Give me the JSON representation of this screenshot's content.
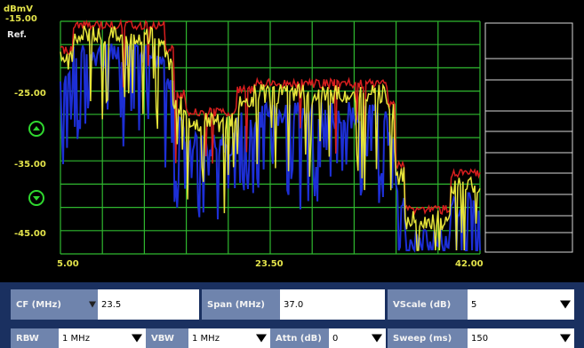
{
  "plot": {
    "unit_label": "dBmV",
    "ref_value": "-15.00",
    "ref_label": "Ref.",
    "y_ticks": [
      "-25.00",
      "-35.00",
      "-45.00"
    ],
    "x_ticks": [
      "5.00",
      "23.50",
      "42.00"
    ],
    "colors": {
      "grid": "#2fb82f",
      "trace_red": "#d81e1e",
      "trace_blue": "#1d2fd6",
      "trace_yellow": "#e6e43a",
      "label": "#e2e24a",
      "marker_icons": "#2fd82f"
    },
    "icons": [
      "scroll-up-icon",
      "scroll-down-icon"
    ]
  },
  "controls": {
    "cf": {
      "label": "CF (MHz)",
      "value": "23.5"
    },
    "span": {
      "label": "Span (MHz)",
      "value": "37.0"
    },
    "vscale": {
      "label": "VScale (dB)",
      "value": "5"
    },
    "rbw": {
      "label": "RBW",
      "value": "1 MHz"
    },
    "vbw": {
      "label": "VBW",
      "value": "1 MHz"
    },
    "attn": {
      "label": "Attn (dB)",
      "value": "0"
    },
    "sweep": {
      "label": "Sweep (ms)",
      "value": "150"
    }
  }
}
